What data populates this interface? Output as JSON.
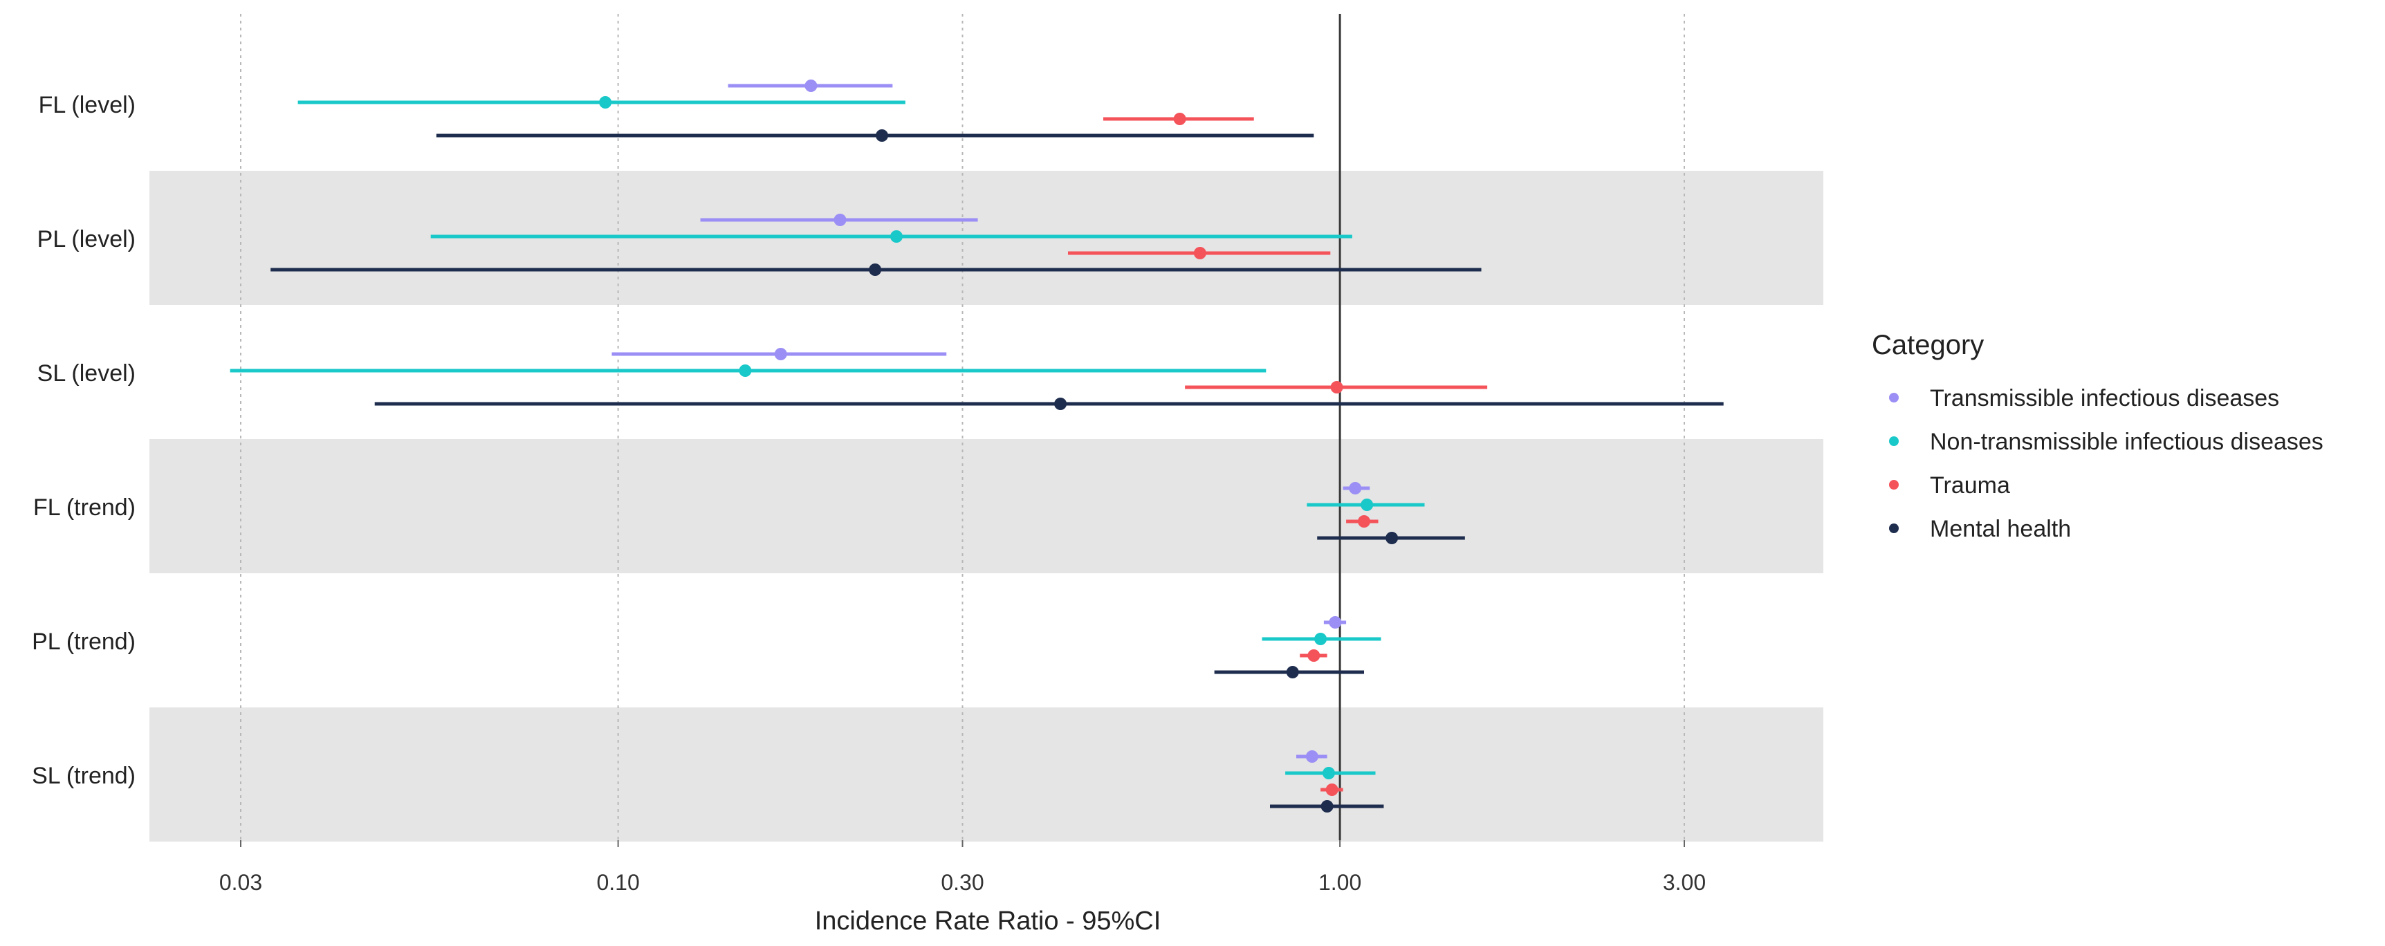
{
  "chart_data": {
    "type": "forest",
    "title": "",
    "xlabel": "Incidence Rate Ratio - 95%CI",
    "ylabel": "",
    "x_scale": "log",
    "xlim": [
      0.022,
      4.6
    ],
    "x_ticks": [
      {
        "value": 0.03,
        "label": "0.03"
      },
      {
        "value": 0.1,
        "label": "0.10"
      },
      {
        "value": 0.3,
        "label": "0.30"
      },
      {
        "value": 1.0,
        "label": "1.00"
      },
      {
        "value": 3.0,
        "label": "3.00"
      }
    ],
    "reference_line": 1.0,
    "rows": [
      "FL (level)",
      "PL (level)",
      "SL (level)",
      "FL (trend)",
      "PL (trend)",
      "SL (trend)"
    ],
    "shaded_rows": [
      1,
      3,
      5
    ],
    "legend": {
      "title": "Category",
      "position": "right"
    },
    "series": [
      {
        "name": "Transmissible infectious diseases",
        "color": "#9b8ff5",
        "points": [
          {
            "row": "FL (level)",
            "est": 0.185,
            "lo": 0.142,
            "hi": 0.24
          },
          {
            "row": "PL (level)",
            "est": 0.203,
            "lo": 0.13,
            "hi": 0.315
          },
          {
            "row": "SL (level)",
            "est": 0.168,
            "lo": 0.098,
            "hi": 0.285
          },
          {
            "row": "FL (trend)",
            "est": 1.05,
            "lo": 1.01,
            "hi": 1.1
          },
          {
            "row": "PL (trend)",
            "est": 0.985,
            "lo": 0.95,
            "hi": 1.02
          },
          {
            "row": "SL (trend)",
            "est": 0.915,
            "lo": 0.87,
            "hi": 0.96
          }
        ]
      },
      {
        "name": "Non-transmissible infectious diseases",
        "color": "#19c8c8",
        "points": [
          {
            "row": "FL (level)",
            "est": 0.096,
            "lo": 0.036,
            "hi": 0.25
          },
          {
            "row": "PL (level)",
            "est": 0.243,
            "lo": 0.055,
            "hi": 1.04
          },
          {
            "row": "SL (level)",
            "est": 0.15,
            "lo": 0.029,
            "hi": 0.79
          },
          {
            "row": "FL (trend)",
            "est": 1.09,
            "lo": 0.9,
            "hi": 1.31
          },
          {
            "row": "PL (trend)",
            "est": 0.94,
            "lo": 0.78,
            "hi": 1.14
          },
          {
            "row": "SL (trend)",
            "est": 0.965,
            "lo": 0.84,
            "hi": 1.12
          }
        ]
      },
      {
        "name": "Trauma",
        "color": "#f4535a",
        "points": [
          {
            "row": "FL (level)",
            "est": 0.6,
            "lo": 0.47,
            "hi": 0.76
          },
          {
            "row": "PL (level)",
            "est": 0.64,
            "lo": 0.42,
            "hi": 0.97
          },
          {
            "row": "SL (level)",
            "est": 0.99,
            "lo": 0.61,
            "hi": 1.6
          },
          {
            "row": "FL (trend)",
            "est": 1.08,
            "lo": 1.02,
            "hi": 1.13
          },
          {
            "row": "PL (trend)",
            "est": 0.92,
            "lo": 0.88,
            "hi": 0.96
          },
          {
            "row": "SL (trend)",
            "est": 0.975,
            "lo": 0.94,
            "hi": 1.01
          }
        ]
      },
      {
        "name": "Mental health",
        "color": "#1e2d4e",
        "points": [
          {
            "row": "FL (level)",
            "est": 0.232,
            "lo": 0.056,
            "hi": 0.92
          },
          {
            "row": "PL (level)",
            "est": 0.227,
            "lo": 0.033,
            "hi": 1.57
          },
          {
            "row": "SL (level)",
            "est": 0.41,
            "lo": 0.046,
            "hi": 3.4
          },
          {
            "row": "FL (trend)",
            "est": 1.18,
            "lo": 0.93,
            "hi": 1.49
          },
          {
            "row": "PL (trend)",
            "est": 0.86,
            "lo": 0.67,
            "hi": 1.08
          },
          {
            "row": "SL (trend)",
            "est": 0.96,
            "lo": 0.8,
            "hi": 1.15
          }
        ]
      }
    ]
  }
}
